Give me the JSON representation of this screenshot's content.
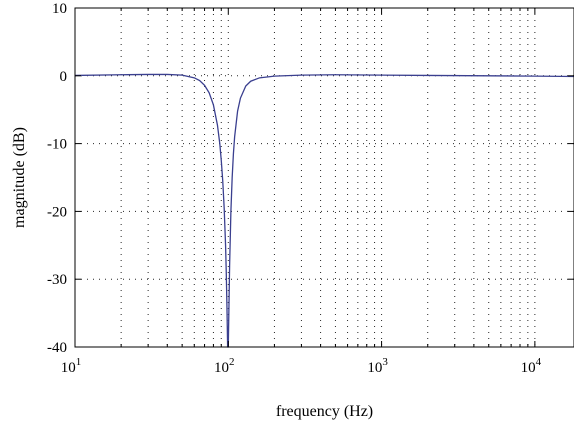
{
  "chart_data": {
    "type": "line",
    "title": "",
    "xlabel": "frequency (Hz)",
    "ylabel": "magnitude (dB)",
    "xscale": "log",
    "xlim": [
      10,
      18000
    ],
    "ylim": [
      -40,
      10
    ],
    "grid": true,
    "x_ticks": [
      10,
      100,
      1000,
      10000
    ],
    "x_tick_labels": [
      {
        "base": "10",
        "exp": "1"
      },
      {
        "base": "10",
        "exp": "2"
      },
      {
        "base": "10",
        "exp": "3"
      },
      {
        "base": "10",
        "exp": "4"
      }
    ],
    "y_ticks": [
      10,
      0,
      -10,
      -20,
      -30,
      -40
    ],
    "y_tick_labels": [
      "10",
      "0",
      "-10",
      "-20",
      "-30",
      "-40"
    ],
    "series": [
      {
        "color": "#3a3f8f",
        "x": [
          10,
          20,
          30,
          40,
          50,
          60,
          65,
          70,
          75,
          80,
          85,
          88,
          90,
          92,
          94,
          96,
          97,
          98,
          98.5,
          99,
          99.5,
          100,
          101,
          102,
          104,
          106,
          108,
          110,
          115,
          120,
          130,
          140,
          160,
          200,
          300,
          500,
          1000,
          2000,
          5000,
          10000,
          18000
        ],
        "y": [
          0.05,
          0.15,
          0.2,
          0.2,
          0.1,
          -0.3,
          -0.7,
          -1.4,
          -2.5,
          -4.3,
          -7.3,
          -10.0,
          -12.5,
          -15.5,
          -19.5,
          -25,
          -29,
          -34,
          -37,
          -40,
          -40,
          -40,
          -34,
          -28,
          -20,
          -15,
          -11.5,
          -9.0,
          -5.2,
          -3.3,
          -1.5,
          -0.8,
          -0.3,
          -0.05,
          0.1,
          0.15,
          0.1,
          0.05,
          0.0,
          -0.05,
          -0.1
        ]
      }
    ]
  }
}
